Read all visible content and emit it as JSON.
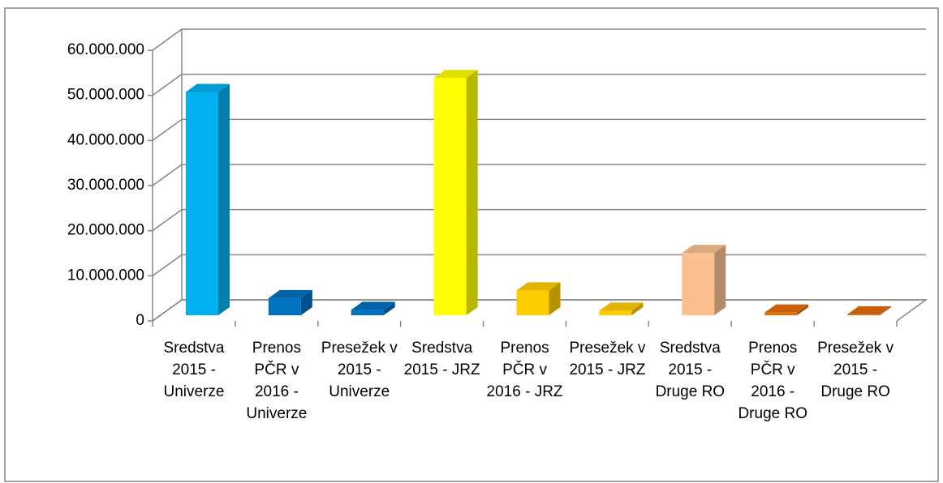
{
  "chart_data": {
    "type": "bar3d",
    "categories": [
      "Sredstva 2015 - Univerze",
      "Prenos PČR v 2016 - Univerze",
      "Presežek v 2015 - Univerze",
      "Sredstva 2015 - JRZ",
      "Prenos PČR v 2016 - JRZ",
      "Presežek v 2015 - JRZ",
      "Sredstva 2015 - Druge RO",
      "Prenos PČR v 2016 - Druge RO",
      "Presežek v 2015 - Druge RO"
    ],
    "values": [
      49500000,
      3800000,
      1200000,
      52600000,
      5500000,
      1000000,
      13800000,
      600000,
      200000
    ],
    "colors": [
      "#00b0f0",
      "#0070c0",
      "#0070c0",
      "#ffff00",
      "#ffcc00",
      "#ffcc00",
      "#fac090",
      "#e46c0a",
      "#e46c0a"
    ],
    "ylim": [
      0,
      60000000
    ],
    "yticks": [
      0,
      {
        "value": 10000000,
        "label": "10.000.000"
      },
      {
        "value": 20000000,
        "label": "20.000.000"
      },
      {
        "value": 30000000,
        "label": "30.000.000"
      },
      {
        "value": 40000000,
        "label": "40.000.000"
      },
      {
        "value": 50000000,
        "label": "50.000.000"
      },
      {
        "value": 60000000,
        "label": "60.000.000"
      }
    ],
    "grid": true
  }
}
